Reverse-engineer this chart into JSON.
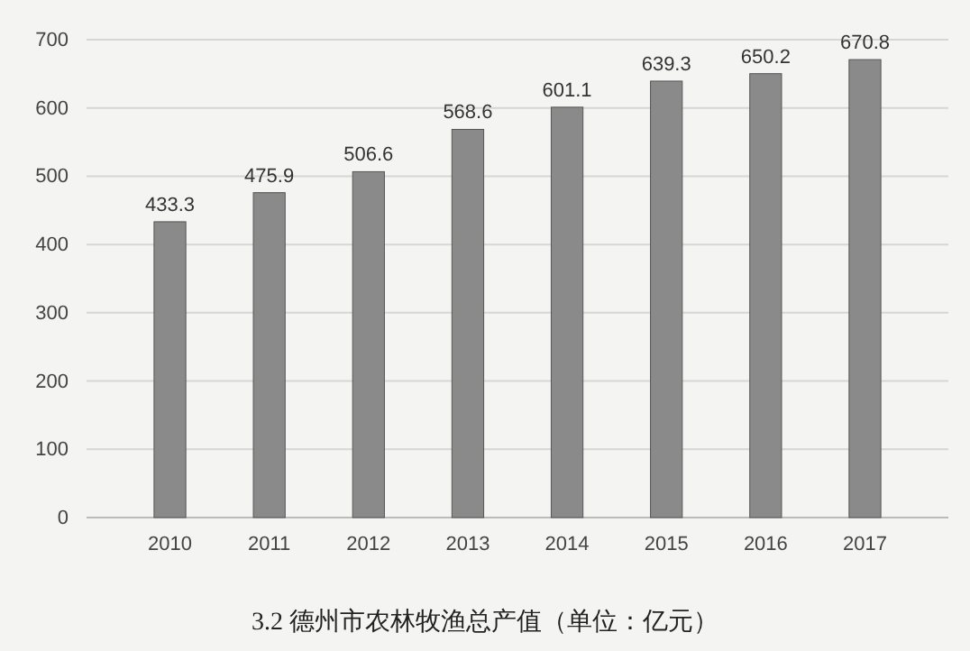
{
  "chart_data": {
    "type": "bar",
    "title": "3.2 德州市农林牧渔总产值（单位：亿元）",
    "categories": [
      "2010",
      "2011",
      "2012",
      "2013",
      "2014",
      "2015",
      "2016",
      "2017"
    ],
    "values": [
      433.3,
      475.9,
      506.6,
      568.6,
      601.1,
      639.3,
      650.2,
      670.8
    ],
    "color": "#8a8a8a",
    "ylim": [
      0,
      700
    ],
    "yticks": [
      0,
      100,
      200,
      300,
      400,
      500,
      600,
      700
    ],
    "grid": "y",
    "data_labels": true
  }
}
